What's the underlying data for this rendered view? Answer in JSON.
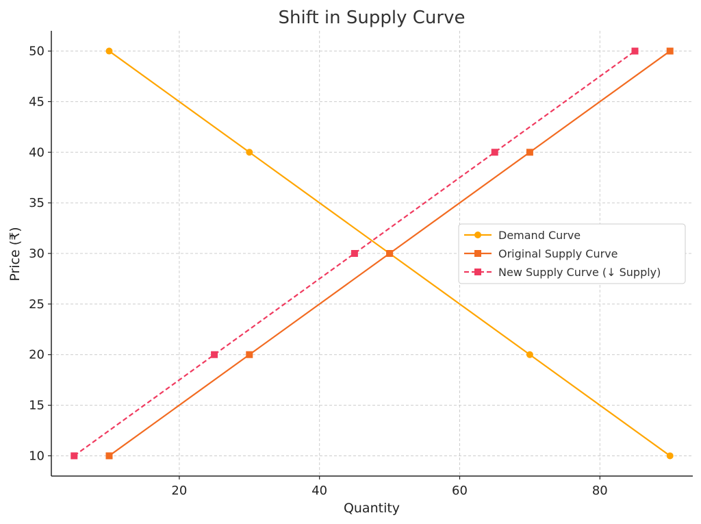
{
  "chart_data": {
    "type": "line",
    "title": "Shift in Supply Curve",
    "xlabel": "Quantity",
    "ylabel": "Price (₹)",
    "xlim": [
      1.75,
      93.25
    ],
    "ylim": [
      8,
      52
    ],
    "x_ticks": [
      20,
      40,
      60,
      80
    ],
    "y_ticks": [
      10,
      15,
      20,
      25,
      30,
      35,
      40,
      45,
      50
    ],
    "grid": true,
    "legend_position": "center-right",
    "series": [
      {
        "name": "Demand Curve",
        "color": "#FFA500",
        "marker": "circle",
        "line_style": "solid",
        "x": [
          10,
          30,
          50,
          70,
          90
        ],
        "y": [
          50,
          40,
          30,
          20,
          10
        ]
      },
      {
        "name": "Original Supply Curve",
        "color": "#F26B21",
        "marker": "square",
        "line_style": "solid",
        "x": [
          10,
          30,
          50,
          70,
          90
        ],
        "y": [
          10,
          20,
          30,
          40,
          50
        ]
      },
      {
        "name": "New Supply Curve (↓ Supply)",
        "color": "#F03A5F",
        "marker": "square",
        "line_style": "dashed",
        "x": [
          5,
          25,
          45,
          65,
          85
        ],
        "y": [
          10,
          20,
          30,
          40,
          50
        ]
      }
    ]
  }
}
